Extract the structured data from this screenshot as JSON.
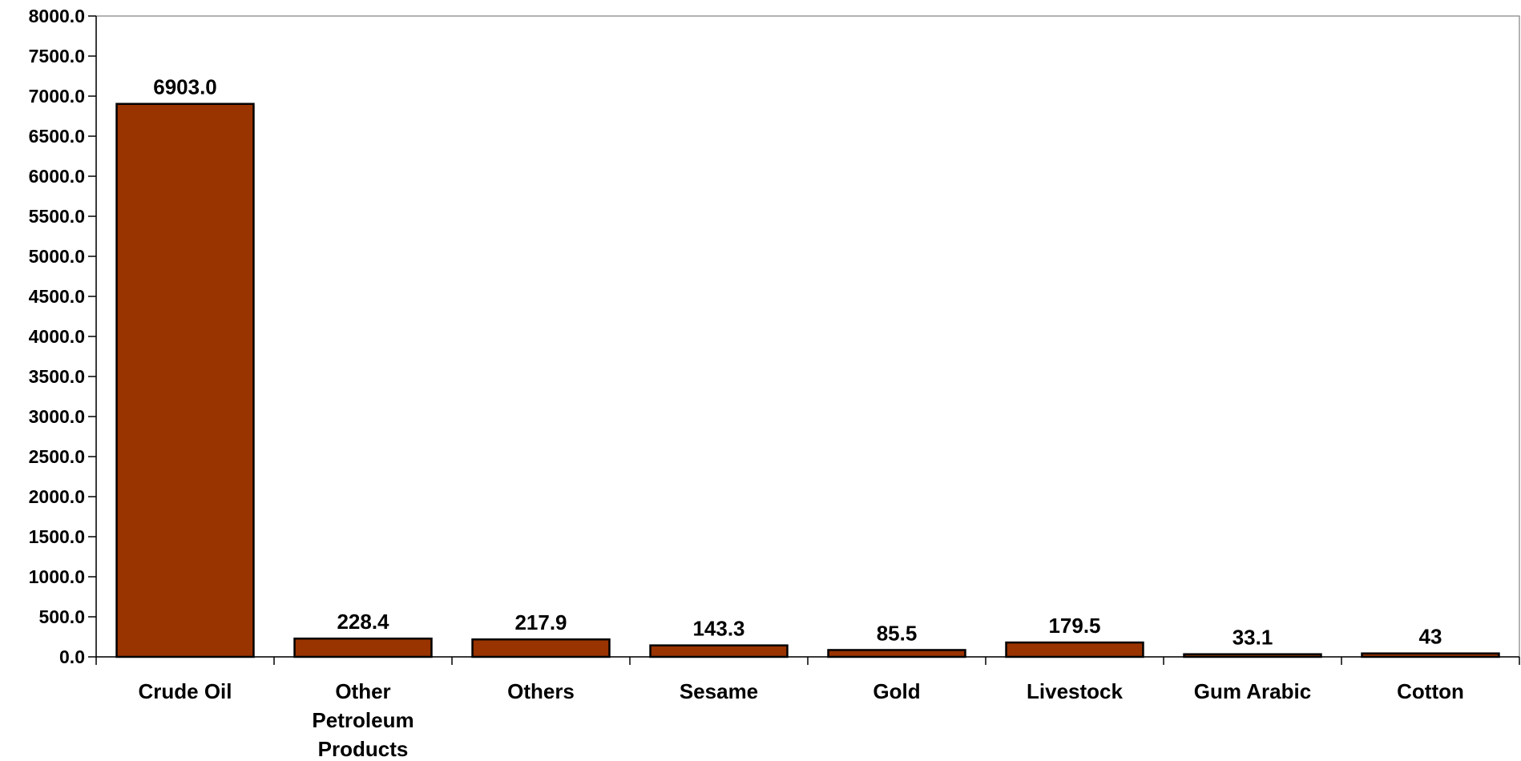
{
  "chart_data": {
    "type": "bar",
    "categories": [
      "Crude Oil",
      "Other Petroleum Products",
      "Others",
      "Sesame",
      "Gold",
      "Livestock",
      "Gum Arabic",
      "Cotton"
    ],
    "category_label_lines": [
      [
        "Crude Oil"
      ],
      [
        "Other",
        "Petroleum",
        "Products"
      ],
      [
        "Others"
      ],
      [
        "Sesame"
      ],
      [
        "Gold"
      ],
      [
        "Livestock"
      ],
      [
        "Gum Arabic"
      ],
      [
        "Cotton"
      ]
    ],
    "values": [
      6903.0,
      228.4,
      217.9,
      143.3,
      85.5,
      179.5,
      33.1,
      43
    ],
    "data_labels": [
      "6903.0",
      "228.4",
      "217.9",
      "143.3",
      "85.5",
      "179.5",
      "33.1",
      "43"
    ],
    "ylim": [
      0,
      8000
    ],
    "y_ticks": [
      "0.0",
      "500.0",
      "1000.0",
      "1500.0",
      "2000.0",
      "2500.0",
      "3000.0",
      "3500.0",
      "4000.0",
      "4500.0",
      "5000.0",
      "5500.0",
      "6000.0",
      "6500.0",
      "7000.0",
      "7500.0",
      "8000.0"
    ],
    "y_tick_values": [
      0,
      500,
      1000,
      1500,
      2000,
      2500,
      3000,
      3500,
      4000,
      4500,
      5000,
      5500,
      6000,
      6500,
      7000,
      7500,
      8000
    ],
    "grid": false,
    "legend": "none",
    "bar_color": "#993300",
    "bar_border_color": "#000000",
    "title": "",
    "xlabel": "",
    "ylabel": ""
  }
}
